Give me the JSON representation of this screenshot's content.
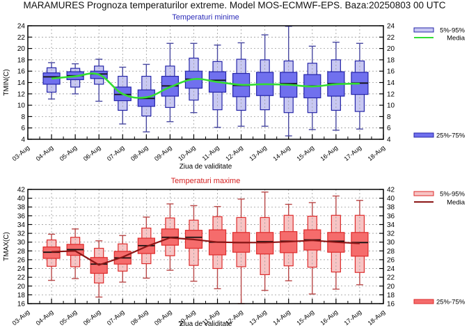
{
  "title": "MARAMURES  Prognoza temperaturilor extreme.  Model MOS-ECMWF-EPS. Baza:20250803 00 UTC",
  "chart_data": [
    {
      "type": "box",
      "title": "Temperaturi minime",
      "title_color": "#2a2ab8",
      "xlabel": "Ziua de validitate",
      "ylabel": "TMIN(C)",
      "ylim": [
        4,
        24
      ],
      "yticks": [
        4,
        6,
        8,
        10,
        12,
        14,
        16,
        18,
        20,
        22,
        24
      ],
      "xtick_labels": [
        "03-Aug",
        "04-Aug",
        "05-Aug",
        "06-Aug",
        "07-Aug",
        "08-Aug",
        "09-Aug",
        "10-Aug",
        "11-Aug",
        "12-Aug",
        "13-Aug",
        "14-Aug",
        "15-Aug",
        "16-Aug",
        "17-Aug",
        "18-Aug"
      ],
      "grid": true,
      "colors": {
        "outer": "#c8c8f2",
        "inner": "#7070ee",
        "edge": "#2424a8",
        "whisker": "#4848a0",
        "mean": "#33dd33",
        "median": "#111111"
      },
      "legend": [
        {
          "label": "5%-95%",
          "kind": "outer"
        },
        {
          "label": "Media",
          "kind": "mean"
        },
        {
          "label": "25%-75%",
          "kind": "inner"
        }
      ],
      "categories": [
        "04-Aug",
        "05-Aug",
        "06-Aug",
        "07-Aug",
        "08-Aug",
        "09-Aug",
        "10-Aug",
        "11-Aug",
        "12-Aug",
        "13-Aug",
        "14-Aug",
        "15-Aug",
        "16-Aug",
        "17-Aug"
      ],
      "whisker_low": [
        11.1,
        12.0,
        10.7,
        6.7,
        5.3,
        7.1,
        8.7,
        6.1,
        6.3,
        6.3,
        4.6,
        5.7,
        5.6,
        5.8
      ],
      "whisker_high": [
        17.5,
        17.3,
        18.1,
        16.7,
        17.2,
        20.9,
        20.9,
        20.6,
        21.0,
        22.4,
        23.9,
        20.4,
        21.1,
        20.9
      ],
      "p5": [
        12.3,
        13.2,
        13.7,
        9.1,
        8.1,
        9.6,
        10.9,
        9.2,
        9.1,
        9.2,
        8.7,
        8.7,
        9.1,
        8.9
      ],
      "p95": [
        16.6,
        16.5,
        16.9,
        15.1,
        15.1,
        16.9,
        18.3,
        17.7,
        18.1,
        18.0,
        17.8,
        17.4,
        18.0,
        17.8
      ],
      "p25": [
        13.7,
        14.5,
        14.7,
        10.8,
        9.8,
        11.6,
        13.0,
        12.3,
        11.5,
        11.7,
        11.4,
        11.3,
        11.6,
        11.9
      ],
      "p75": [
        15.7,
        15.9,
        16.0,
        13.2,
        12.7,
        15.1,
        16.0,
        15.9,
        15.6,
        15.8,
        15.8,
        15.4,
        15.9,
        15.8
      ],
      "median": [
        15.0,
        15.2,
        15.5,
        11.9,
        11.2,
        13.4,
        14.6,
        14.4,
        13.5,
        13.7,
        13.8,
        13.4,
        13.8,
        13.9
      ],
      "mean": [
        14.7,
        15.1,
        15.4,
        12.0,
        11.4,
        13.2,
        14.6,
        14.1,
        13.6,
        13.7,
        13.6,
        13.3,
        13.7,
        13.8
      ]
    },
    {
      "type": "box",
      "title": "Temperaturi maxime",
      "title_color": "#d42020",
      "xlabel": "Ziua de validitate",
      "ylabel": "TMAX(C)",
      "ylim": [
        16,
        42
      ],
      "yticks": [
        16,
        18,
        20,
        22,
        24,
        26,
        28,
        30,
        32,
        34,
        36,
        38,
        40,
        42
      ],
      "xtick_labels": [
        "03-Aug",
        "04-Aug",
        "05-Aug",
        "06-Aug",
        "07-Aug",
        "08-Aug",
        "09-Aug",
        "10-Aug",
        "11-Aug",
        "12-Aug",
        "13-Aug",
        "14-Aug",
        "15-Aug",
        "16-Aug",
        "17-Aug",
        "18-Aug"
      ],
      "grid": true,
      "colors": {
        "outer": "#f7c4c4",
        "inner": "#f56c6c",
        "edge": "#dd2a2a",
        "whisker": "#b84848",
        "mean": "#8b1515",
        "median": "#111111"
      },
      "legend": [
        {
          "label": "5%-95%",
          "kind": "outer"
        },
        {
          "label": "Media",
          "kind": "mean"
        },
        {
          "label": "25%-75%",
          "kind": "inner"
        }
      ],
      "categories": [
        "04-Aug",
        "05-Aug",
        "06-Aug",
        "07-Aug",
        "08-Aug",
        "09-Aug",
        "10-Aug",
        "11-Aug",
        "12-Aug",
        "13-Aug",
        "14-Aug",
        "15-Aug",
        "16-Aug",
        "17-Aug"
      ],
      "whisker_low": [
        21.3,
        21.7,
        17.5,
        20.9,
        21.8,
        23.6,
        21.1,
        19.4,
        16.0,
        19.0,
        21.2,
        18.2,
        19.3,
        20.3
      ],
      "whisker_high": [
        31.8,
        33.0,
        30.3,
        31.5,
        35.7,
        38.7,
        38.3,
        38.1,
        39.8,
        41.4,
        38.6,
        39.0,
        40.5,
        39.5
      ],
      "p5": [
        24.5,
        24.4,
        20.7,
        23.4,
        25.1,
        26.9,
        24.7,
        24.0,
        24.4,
        22.6,
        24.6,
        24.3,
        23.2,
        23.1
      ],
      "p95": [
        30.5,
        31.1,
        28.6,
        29.6,
        33.2,
        35.5,
        35.0,
        35.8,
        35.6,
        35.6,
        36.1,
        35.9,
        36.1,
        36.1
      ],
      "p25": [
        26.3,
        27.0,
        22.9,
        25.0,
        27.4,
        29.3,
        28.6,
        27.1,
        27.7,
        27.3,
        27.6,
        28.2,
        27.7,
        26.8
      ],
      "p75": [
        28.9,
        29.5,
        26.5,
        27.9,
        30.9,
        33.0,
        32.7,
        32.8,
        32.2,
        32.2,
        32.4,
        32.8,
        32.2,
        32.2
      ],
      "median": [
        27.7,
        28.3,
        25.0,
        26.4,
        29.2,
        31.1,
        31.1,
        30.0,
        29.9,
        30.1,
        30.2,
        30.5,
        30.2,
        29.9
      ],
      "mean": [
        27.8,
        28.0,
        24.8,
        26.6,
        29.0,
        31.0,
        30.6,
        30.0,
        29.9,
        29.9,
        30.1,
        30.4,
        30.0,
        29.7
      ]
    }
  ]
}
